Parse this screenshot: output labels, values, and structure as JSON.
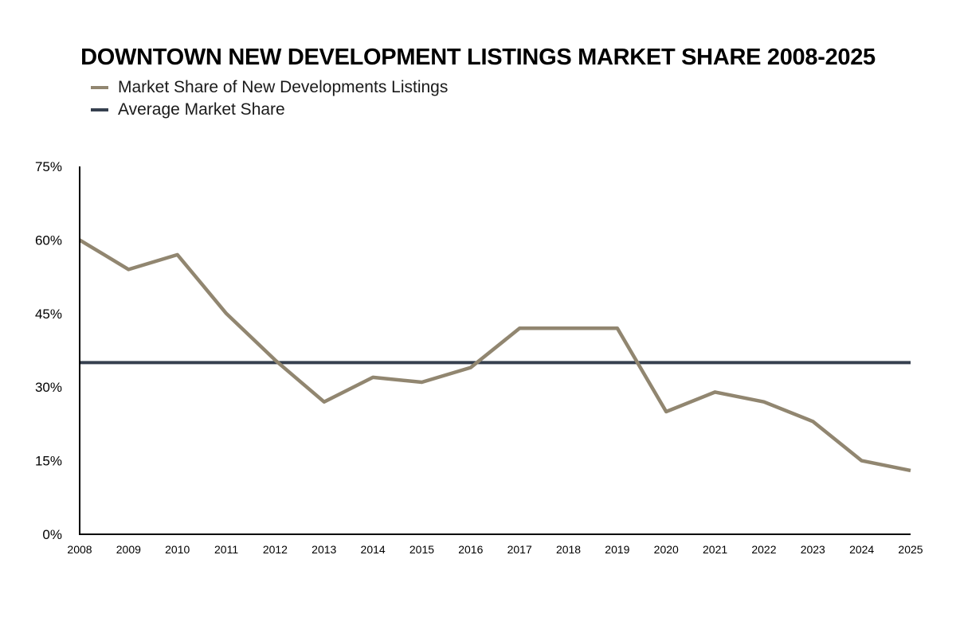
{
  "chart_data": {
    "type": "line",
    "title": "DOWNTOWN NEW DEVELOPMENT LISTINGS MARKET SHARE 2008-2025",
    "xlabel": "",
    "ylabel": "",
    "x": [
      "2008",
      "2009",
      "2010",
      "2011",
      "2012",
      "2013",
      "2014",
      "2015",
      "2016",
      "2017",
      "2018",
      "2019",
      "2020",
      "2021",
      "2022",
      "2023",
      "2024",
      "2025"
    ],
    "ylim": [
      0,
      75
    ],
    "yticks": [
      0,
      15,
      30,
      45,
      60,
      75
    ],
    "ytick_labels": [
      "0%",
      "15%",
      "30%",
      "45%",
      "60%",
      "75%"
    ],
    "grid": false,
    "legend_position": "top-left",
    "series": [
      {
        "name": "Market Share of New Developments Listings",
        "color": "#918670",
        "values": [
          60,
          54,
          57,
          45,
          35.5,
          27,
          32,
          31,
          34,
          42,
          42,
          42,
          25,
          29,
          27,
          23,
          15,
          13
        ]
      },
      {
        "name": "Average Market Share",
        "color": "#36404f",
        "values": [
          35,
          35,
          35,
          35,
          35,
          35,
          35,
          35,
          35,
          35,
          35,
          35,
          35,
          35,
          35,
          35,
          35,
          35
        ]
      }
    ]
  }
}
